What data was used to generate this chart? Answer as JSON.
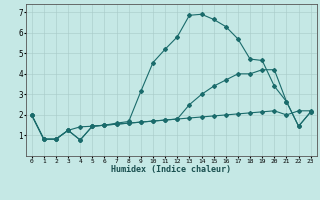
{
  "background_color": "#c5e8e5",
  "line_color": "#1a6b6b",
  "xlabel": "Humidex (Indice chaleur)",
  "xlim": [
    -0.5,
    23.5
  ],
  "ylim": [
    0,
    7.4
  ],
  "xticks": [
    0,
    1,
    2,
    3,
    4,
    5,
    6,
    7,
    8,
    9,
    10,
    11,
    12,
    13,
    14,
    15,
    16,
    17,
    18,
    19,
    20,
    21,
    22,
    23
  ],
  "yticks": [
    1,
    2,
    3,
    4,
    5,
    6,
    7
  ],
  "line1_x": [
    0,
    1,
    2,
    3,
    4,
    5,
    6,
    7,
    8,
    9,
    10,
    11,
    12,
    13,
    14,
    15,
    16,
    17,
    18,
    19,
    20,
    21,
    22,
    23
  ],
  "line1_y": [
    2.0,
    0.82,
    0.82,
    1.25,
    1.42,
    1.45,
    1.5,
    1.55,
    1.6,
    1.65,
    1.7,
    1.75,
    1.8,
    1.85,
    1.9,
    1.95,
    2.0,
    2.05,
    2.1,
    2.15,
    2.2,
    2.0,
    2.2,
    2.2
  ],
  "line2_x": [
    0,
    1,
    2,
    3,
    4,
    5,
    6,
    7,
    8,
    9,
    10,
    11,
    12,
    13,
    14,
    15,
    16,
    17,
    18,
    19,
    20,
    21,
    22,
    23
  ],
  "line2_y": [
    2.0,
    0.82,
    0.82,
    1.25,
    0.78,
    1.45,
    1.5,
    1.55,
    1.6,
    1.65,
    1.7,
    1.75,
    1.8,
    2.5,
    3.0,
    3.4,
    3.7,
    4.0,
    4.0,
    4.2,
    4.2,
    2.65,
    1.45,
    2.15
  ],
  "line3_x": [
    0,
    1,
    2,
    3,
    4,
    5,
    6,
    7,
    8,
    9,
    10,
    11,
    12,
    13,
    14,
    15,
    16,
    17,
    18,
    19,
    20,
    21,
    22,
    23
  ],
  "line3_y": [
    2.0,
    0.82,
    0.82,
    1.25,
    0.78,
    1.45,
    1.5,
    1.6,
    1.68,
    3.15,
    4.55,
    5.2,
    5.8,
    6.85,
    6.9,
    6.65,
    6.3,
    5.7,
    4.72,
    4.65,
    3.4,
    2.65,
    1.45,
    2.15
  ]
}
